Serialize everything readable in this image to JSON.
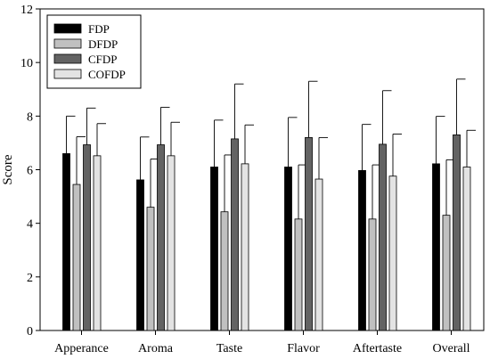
{
  "chart_data": {
    "type": "bar",
    "ylabel": "Score",
    "xlabel": "",
    "ylim": [
      0,
      12
    ],
    "yticks": [
      0,
      2,
      4,
      6,
      8,
      10,
      12
    ],
    "categories": [
      "Apperance",
      "Aroma",
      "Taste",
      "Flavor",
      "Aftertaste",
      "Overall"
    ],
    "series": [
      {
        "name": "FDP",
        "color": "#000000",
        "values": [
          6.6,
          5.62,
          6.1,
          6.1,
          5.97,
          6.22
        ],
        "errors": [
          1.4,
          1.6,
          1.75,
          1.85,
          1.72,
          1.77
        ]
      },
      {
        "name": "DFDP",
        "color": "#c0c0c0",
        "values": [
          5.45,
          4.6,
          4.43,
          4.16,
          4.16,
          4.3
        ],
        "errors": [
          1.78,
          1.8,
          2.12,
          2.02,
          2.02,
          2.07
        ]
      },
      {
        "name": "CFDP",
        "color": "#636363",
        "values": [
          6.93,
          6.93,
          7.15,
          7.2,
          6.95,
          7.3
        ],
        "errors": [
          1.37,
          1.4,
          2.05,
          2.1,
          2.0,
          2.08
        ]
      },
      {
        "name": "COFDP",
        "color": "#e3e3e3",
        "values": [
          6.52,
          6.52,
          6.22,
          5.65,
          5.76,
          6.1
        ],
        "errors": [
          1.2,
          1.25,
          1.45,
          1.55,
          1.57,
          1.37
        ]
      }
    ],
    "legend": "top-left",
    "grid": false
  }
}
